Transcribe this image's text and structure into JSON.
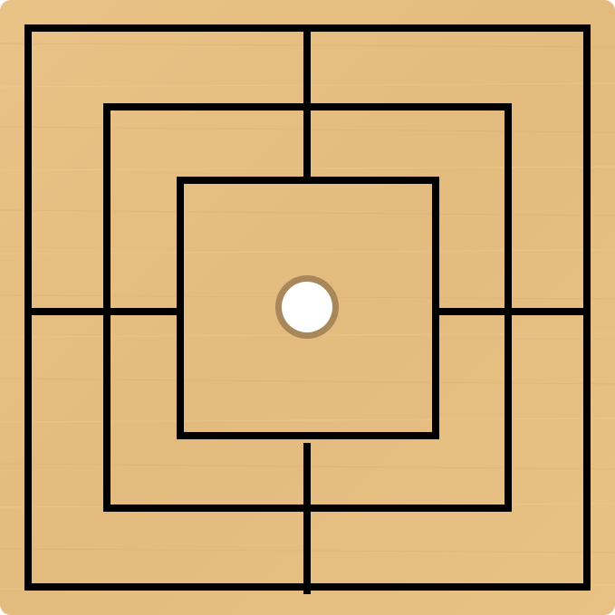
{
  "game": "nine-mens-morris",
  "colors": {
    "wood": "#e6bf83",
    "wood_grain_light": "#eccb93",
    "wood_grain_dark": "#d9ae70",
    "line": "#000000",
    "empty_point_fill": "#ffffff",
    "empty_point_ring": "#a8875a"
  },
  "board": {
    "rings": [
      "outer",
      "middle",
      "inner"
    ],
    "cross_lines": [
      "top",
      "right",
      "bottom",
      "left"
    ],
    "points": [
      {
        "id": "center",
        "state": "empty-highlight"
      }
    ]
  }
}
